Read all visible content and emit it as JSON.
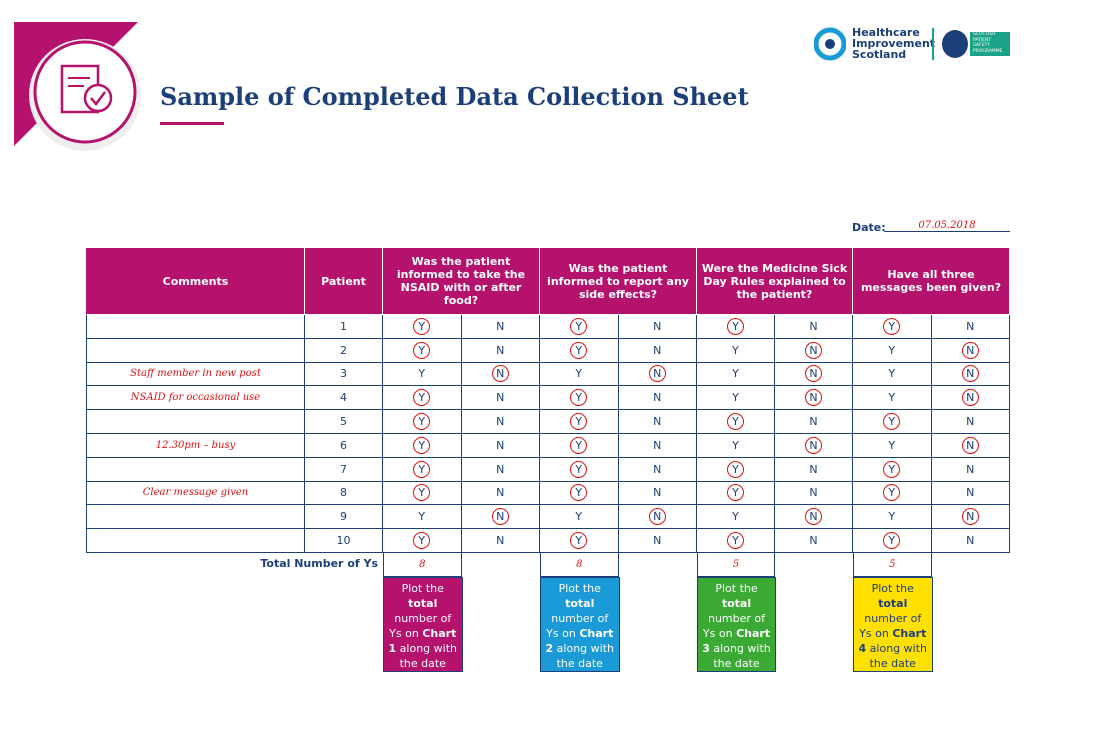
{
  "header": {
    "title": "Sample of Completed Data Collection Sheet",
    "logo": [
      "Healthcare",
      "Improvement",
      "Scotland"
    ],
    "logo_secondary": [
      "SCOTTISH",
      "PATIENT",
      "SAFETY",
      "PROGRAMME"
    ]
  },
  "date": {
    "label": "Date:",
    "value": "07.05.2018"
  },
  "table": {
    "headers": [
      "Comments",
      "Patient",
      "Was the patient informed to take the NSAID with or after food?",
      "Was the patient informed to report any side effects?",
      "Were the Medicine Sick Day Rules explained to the patient?",
      "Have all three messages been given?"
    ],
    "options": [
      "Y",
      "N"
    ],
    "rows": [
      {
        "patient": "1",
        "answers": [
          "Y",
          "Y",
          "Y",
          "Y"
        ]
      },
      {
        "patient": "2",
        "answers": [
          "Y",
          "Y",
          "N",
          "N"
        ]
      },
      {
        "comment": "Staff member in new post",
        "patient": "3",
        "answers": [
          "N",
          "N",
          "N",
          "N"
        ]
      },
      {
        "comment": "NSAID for occasional use",
        "patient": "4",
        "answers": [
          "Y",
          "Y",
          "N",
          "N"
        ]
      },
      {
        "patient": "5",
        "answers": [
          "Y",
          "Y",
          "Y",
          "Y"
        ]
      },
      {
        "comment": "12.30pm – busy",
        "patient": "6",
        "answers": [
          "Y",
          "Y",
          "N",
          "N"
        ]
      },
      {
        "patient": "7",
        "answers": [
          "Y",
          "Y",
          "Y",
          "Y"
        ]
      },
      {
        "comment": "Clear message given",
        "patient": "8",
        "answers": [
          "Y",
          "Y",
          "Y",
          "Y"
        ]
      },
      {
        "patient": "9",
        "answers": [
          "N",
          "N",
          "N",
          "N"
        ]
      },
      {
        "patient": "10",
        "answers": [
          "Y",
          "Y",
          "Y",
          "Y"
        ]
      }
    ],
    "total_label": "Total Number of Ys",
    "totals": [
      "8",
      "8",
      "5",
      "5"
    ]
  },
  "plot_boxes": [
    {
      "color": "#b5126e",
      "parts": [
        "Plot the ",
        "total",
        " number of Ys on ",
        "Chart 1",
        " along with the date"
      ]
    },
    {
      "color": "#1a9ad6",
      "parts": [
        "Plot the ",
        "total",
        " number of Ys on ",
        "Chart 2",
        " along with the date"
      ]
    },
    {
      "color": "#3aaa35",
      "parts": [
        "Plot the ",
        "total",
        " number of Ys on ",
        "Chart 3",
        " along with the date"
      ]
    },
    {
      "color": "#ffe000",
      "parts": [
        "Plot the ",
        "total",
        " number of Ys on ",
        "Chart 4",
        " along with the date"
      ]
    }
  ]
}
